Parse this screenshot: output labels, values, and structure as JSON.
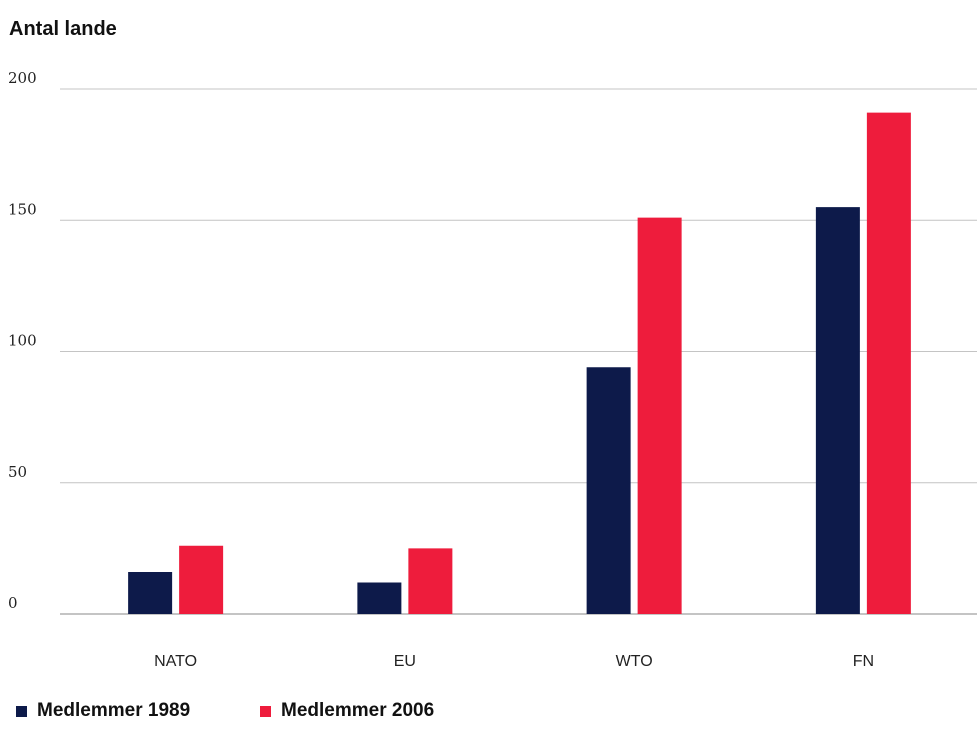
{
  "chart_data": {
    "type": "bar",
    "title": "",
    "xlabel": "",
    "ylabel": "Antal lande",
    "categories": [
      "NATO",
      "EU",
      "WTO",
      "FN"
    ],
    "series": [
      {
        "name": "Medlemmer 1989",
        "color": "#0d1a4a",
        "values": [
          16,
          12,
          94,
          155
        ]
      },
      {
        "name": "Medlemmer 2006",
        "color": "#ee1c3c",
        "values": [
          26,
          25,
          151,
          191
        ]
      }
    ],
    "yticks": [
      "0",
      "50",
      "100",
      "150",
      "200"
    ],
    "ylim": [
      0,
      200
    ],
    "grid": true,
    "legend_position": "bottom-left"
  }
}
